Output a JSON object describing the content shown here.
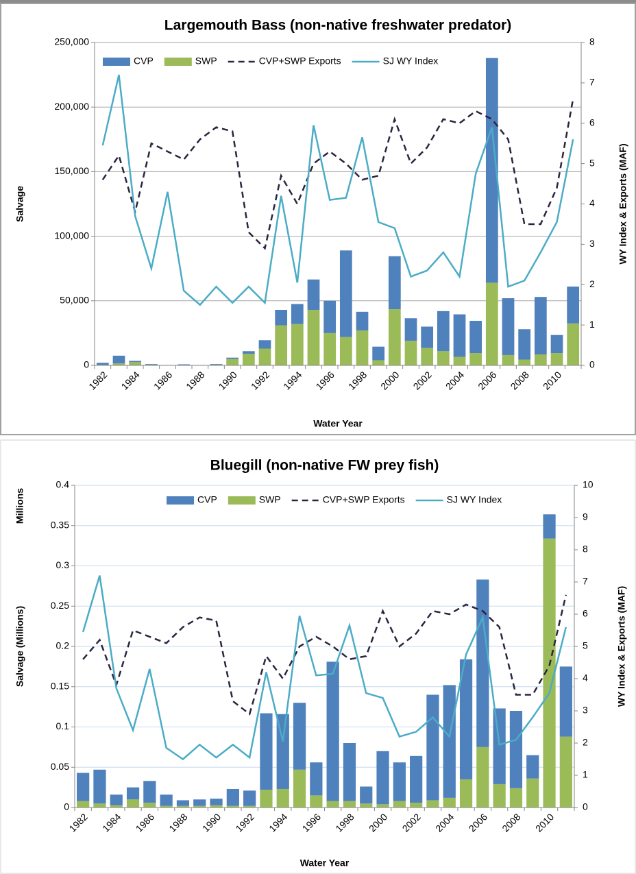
{
  "chart_data": [
    {
      "type": "bar",
      "title": "Largemouth Bass (non-native freshwater predator)",
      "xlabel": "Water Year",
      "ylabel": "Salvage",
      "y2label": "WY Index & Exports (MAF)",
      "categories": [
        "1982",
        null,
        "1984",
        null,
        "1986",
        null,
        "1988",
        null,
        "1990",
        null,
        "1992",
        null,
        "1994",
        null,
        "1996",
        null,
        "1998",
        null,
        "2000",
        null,
        "2002",
        null,
        "2004",
        null,
        "2006",
        null,
        "2008",
        null,
        "2010",
        null
      ],
      "stacked": true,
      "grid": true,
      "grid_color": "#a6a6a6",
      "ylim": [
        0,
        250000
      ],
      "yticks": [
        0,
        {
          "value": 50000,
          "label": "50,000"
        },
        {
          "value": 100000,
          "label": "100,000"
        },
        {
          "value": 150000,
          "label": "150,000"
        },
        {
          "value": 200000,
          "label": "200,000"
        },
        {
          "value": 250000,
          "label": "250,000"
        }
      ],
      "y2lim": [
        0,
        8
      ],
      "y2ticks": [
        0,
        1,
        2,
        3,
        4,
        5,
        6,
        7,
        8
      ],
      "series": [
        {
          "name": "CVP",
          "type": "bar",
          "color": "#4f81bd",
          "values": [
            1500,
            6000,
            1000,
            500,
            200,
            500,
            200,
            500,
            1000,
            2000,
            6500,
            12000,
            15500,
            23500,
            25000,
            67000,
            14500,
            10500,
            41000,
            17500,
            16500,
            31000,
            33000,
            25000,
            174000,
            44000,
            23500,
            44500,
            14000,
            28500
          ]
        },
        {
          "name": "SWP",
          "type": "bar",
          "color": "#9bbb59",
          "values": [
            500,
            1500,
            2500,
            500,
            100,
            300,
            100,
            500,
            5000,
            9000,
            13000,
            31000,
            32000,
            43000,
            25000,
            22000,
            27000,
            4000,
            43500,
            19000,
            13500,
            11000,
            6500,
            9500,
            64000,
            8000,
            4500,
            8500,
            9500,
            32500
          ]
        },
        {
          "name": "CVP+SWP Exports",
          "type": "line",
          "axis": "y2",
          "line_style": "dashed",
          "color": "#2b2540",
          "values": [
            4.6,
            5.2,
            3.8,
            5.5,
            5.3,
            5.1,
            5.6,
            5.9,
            5.8,
            3.3,
            2.9,
            4.7,
            4.0,
            5.0,
            5.3,
            5.0,
            4.6,
            4.7,
            6.1,
            5.0,
            5.4,
            6.1,
            6.0,
            6.3,
            6.1,
            5.6,
            3.5,
            3.5,
            4.4,
            6.6
          ]
        },
        {
          "name": "SJ WY Index",
          "type": "line",
          "axis": "y2",
          "line_style": "solid",
          "color": "#4bacc6",
          "values": [
            5.45,
            7.2,
            3.7,
            2.4,
            4.3,
            1.85,
            1.5,
            1.95,
            1.55,
            1.95,
            1.55,
            4.2,
            2.05,
            5.95,
            4.1,
            4.15,
            5.65,
            3.55,
            3.4,
            2.2,
            2.35,
            2.8,
            2.2,
            4.75,
            5.9,
            1.95,
            2.1,
            2.8,
            3.55,
            5.6
          ]
        }
      ]
    },
    {
      "type": "bar",
      "title": "Bluegill (non-native FW prey fish)",
      "xlabel": "Water Year",
      "ylabel": "Salvage (Millions)",
      "yunit": "Millions",
      "y2label": "WY Index & Exports (MAF)",
      "categories": [
        "1982",
        null,
        "1984",
        null,
        "1986",
        null,
        "1988",
        null,
        "1990",
        null,
        "1992",
        null,
        "1994",
        null,
        "1996",
        null,
        "1998",
        null,
        "2000",
        null,
        "2002",
        null,
        "2004",
        null,
        "2006",
        null,
        "2008",
        null,
        "2010",
        null
      ],
      "stacked": true,
      "grid": true,
      "grid_color": "#c5d9f1",
      "ylim": [
        0,
        0.4
      ],
      "yticks": [
        0,
        0.05,
        0.1,
        0.15,
        0.2,
        0.25,
        0.3,
        0.35,
        0.4
      ],
      "y2lim": [
        0,
        10
      ],
      "y2ticks": [
        0,
        1,
        2,
        3,
        4,
        5,
        6,
        7,
        8,
        9,
        10
      ],
      "series": [
        {
          "name": "CVP",
          "type": "bar",
          "color": "#4f81bd",
          "values": [
            0.035,
            0.042,
            0.013,
            0.015,
            0.027,
            0.014,
            0.007,
            0.008,
            0.008,
            0.021,
            0.019,
            0.095,
            0.093,
            0.083,
            0.041,
            0.173,
            0.072,
            0.021,
            0.066,
            0.048,
            0.058,
            0.131,
            0.14,
            0.149,
            0.208,
            0.094,
            0.096,
            0.029,
            0.03,
            0.087
          ]
        },
        {
          "name": "SWP",
          "type": "bar",
          "color": "#9bbb59",
          "values": [
            0.008,
            0.005,
            0.003,
            0.01,
            0.006,
            0.002,
            0.002,
            0.002,
            0.003,
            0.002,
            0.002,
            0.022,
            0.023,
            0.047,
            0.015,
            0.008,
            0.008,
            0.005,
            0.004,
            0.008,
            0.006,
            0.009,
            0.012,
            0.035,
            0.075,
            0.029,
            0.024,
            0.036,
            0.334,
            0.088
          ]
        },
        {
          "name": "CVP+SWP Exports",
          "type": "line",
          "axis": "y2",
          "line_style": "dashed",
          "color": "#2b2540",
          "values": [
            4.6,
            5.2,
            3.8,
            5.5,
            5.3,
            5.1,
            5.6,
            5.9,
            5.8,
            3.3,
            2.9,
            4.7,
            4.0,
            5.0,
            5.3,
            5.0,
            4.6,
            4.7,
            6.1,
            5.0,
            5.4,
            6.1,
            6.0,
            6.3,
            6.1,
            5.6,
            3.5,
            3.5,
            4.4,
            6.6
          ]
        },
        {
          "name": "SJ WY Index",
          "type": "line",
          "axis": "y2",
          "line_style": "solid",
          "color": "#4bacc6",
          "values": [
            5.45,
            7.2,
            3.7,
            2.4,
            4.3,
            1.85,
            1.5,
            1.95,
            1.55,
            1.95,
            1.55,
            4.2,
            2.05,
            5.95,
            4.1,
            4.15,
            5.65,
            3.55,
            3.4,
            2.2,
            2.35,
            2.8,
            2.2,
            4.75,
            5.9,
            1.95,
            2.1,
            2.8,
            3.55,
            5.6
          ]
        }
      ]
    }
  ]
}
